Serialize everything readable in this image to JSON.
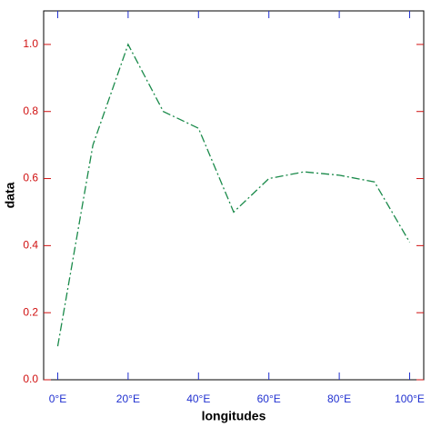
{
  "chart_data": {
    "type": "line",
    "x": [
      0,
      10,
      20,
      30,
      40,
      50,
      60,
      70,
      80,
      90,
      100
    ],
    "series": [
      {
        "color": "#1a8a4a",
        "values": [
          0.1,
          0.7,
          1.0,
          0.8,
          0.75,
          0.5,
          0.6,
          0.62,
          0.61,
          0.59,
          0.41
        ]
      }
    ],
    "xlabel": "longitudes",
    "ylabel": "data",
    "xlim": [
      -4,
      104
    ],
    "ylim": [
      0,
      1.1
    ],
    "xticks": [
      {
        "value": 0,
        "label": "0°E"
      },
      {
        "value": 20,
        "label": "20°E"
      },
      {
        "value": 40,
        "label": "40°E"
      },
      {
        "value": 60,
        "label": "60°E"
      },
      {
        "value": 80,
        "label": "80°E"
      },
      {
        "value": 100,
        "label": "100°E"
      }
    ],
    "yticks": [
      {
        "value": 0,
        "label": "0.0"
      },
      {
        "value": 0.2,
        "label": "0.2"
      },
      {
        "value": 0.4,
        "label": "0.4"
      },
      {
        "value": 0.6,
        "label": "0.6"
      },
      {
        "value": 0.8,
        "label": "0.8"
      },
      {
        "value": 1.0,
        "label": "1.0"
      }
    ],
    "xtick_color": "#2030d0",
    "ytick_color": "#d01010"
  }
}
